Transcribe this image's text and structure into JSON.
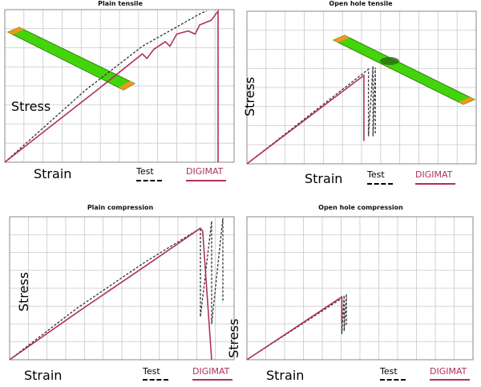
{
  "colors": {
    "test": "#333333",
    "digimat": "#b03060",
    "grid": "#c8c8c8",
    "coupon": "#44d40c",
    "tab": "#f7941d"
  },
  "legend": {
    "test": "Test",
    "digimat": "DIGIMAT"
  },
  "chart_data": [
    {
      "type": "line",
      "title": "Plain tensile",
      "xlabel": "Strain",
      "ylabel": "Stress",
      "xlim": [
        0,
        1
      ],
      "ylim": [
        0,
        1
      ],
      "grid": true,
      "series": [
        {
          "name": "Test",
          "style": "dashed",
          "x": [
            0,
            0.35,
            0.6,
            0.86,
            0.88
          ],
          "y": [
            0,
            0.47,
            0.76,
            0.98,
            0.99
          ]
        },
        {
          "name": "DIGIMAT",
          "style": "solid",
          "x": [
            0,
            0.4,
            0.6,
            0.62,
            0.65,
            0.7,
            0.72,
            0.75,
            0.8,
            0.83,
            0.85,
            0.9,
            0.92,
            0.93,
            0.93
          ],
          "y": [
            0,
            0.47,
            0.71,
            0.68,
            0.74,
            0.79,
            0.76,
            0.84,
            0.86,
            0.84,
            0.9,
            0.93,
            0.97,
            0.99,
            0
          ]
        }
      ]
    },
    {
      "type": "line",
      "title": "Open hole tensile",
      "xlabel": "Strain",
      "ylabel": "Stress",
      "xlim": [
        0,
        1
      ],
      "ylim": [
        0,
        1
      ],
      "grid": true,
      "series": [
        {
          "name": "Test",
          "style": "dashed",
          "x": [
            0,
            0.53,
            0.53,
            0.55,
            0.55,
            0.56,
            0.56
          ],
          "y": [
            0,
            0.62,
            0.18,
            0.64,
            0.18,
            0.63,
            0.2
          ]
        },
        {
          "name": "DIGIMAT",
          "style": "solid",
          "x": [
            0,
            0.51,
            0.51
          ],
          "y": [
            0,
            0.58,
            0.15
          ]
        }
      ]
    },
    {
      "type": "line",
      "title": "Plain compression",
      "xlabel": "Strain",
      "ylabel": "Stress",
      "xlim": [
        0,
        1
      ],
      "ylim": [
        0,
        1
      ],
      "grid": true,
      "series": [
        {
          "name": "Test",
          "style": "dashed",
          "x": [
            0,
            0.3,
            0.6,
            0.85,
            0.85,
            0.9,
            0.9,
            0.95,
            0.95
          ],
          "y": [
            0,
            0.36,
            0.68,
            0.92,
            0.3,
            0.97,
            0.25,
            0.99,
            0.4
          ]
        },
        {
          "name": "DIGIMAT",
          "style": "solid",
          "x": [
            0,
            0.3,
            0.6,
            0.85,
            0.86,
            0.9
          ],
          "y": [
            0,
            0.33,
            0.65,
            0.92,
            0.9,
            0
          ]
        }
      ]
    },
    {
      "type": "line",
      "title": "Open hole compression",
      "xlabel": "Strain",
      "ylabel": "Stress",
      "xlim": [
        0,
        1
      ],
      "ylim": [
        0,
        1
      ],
      "grid": true,
      "series": [
        {
          "name": "Test",
          "style": "dashed",
          "x": [
            0,
            0.42,
            0.42,
            0.43,
            0.43,
            0.44,
            0.44
          ],
          "y": [
            0,
            0.43,
            0.18,
            0.45,
            0.2,
            0.46,
            0.24
          ]
        },
        {
          "name": "DIGIMAT",
          "style": "solid",
          "x": [
            0,
            0.42,
            0.42
          ],
          "y": [
            0,
            0.44,
            0.26
          ]
        }
      ]
    }
  ]
}
